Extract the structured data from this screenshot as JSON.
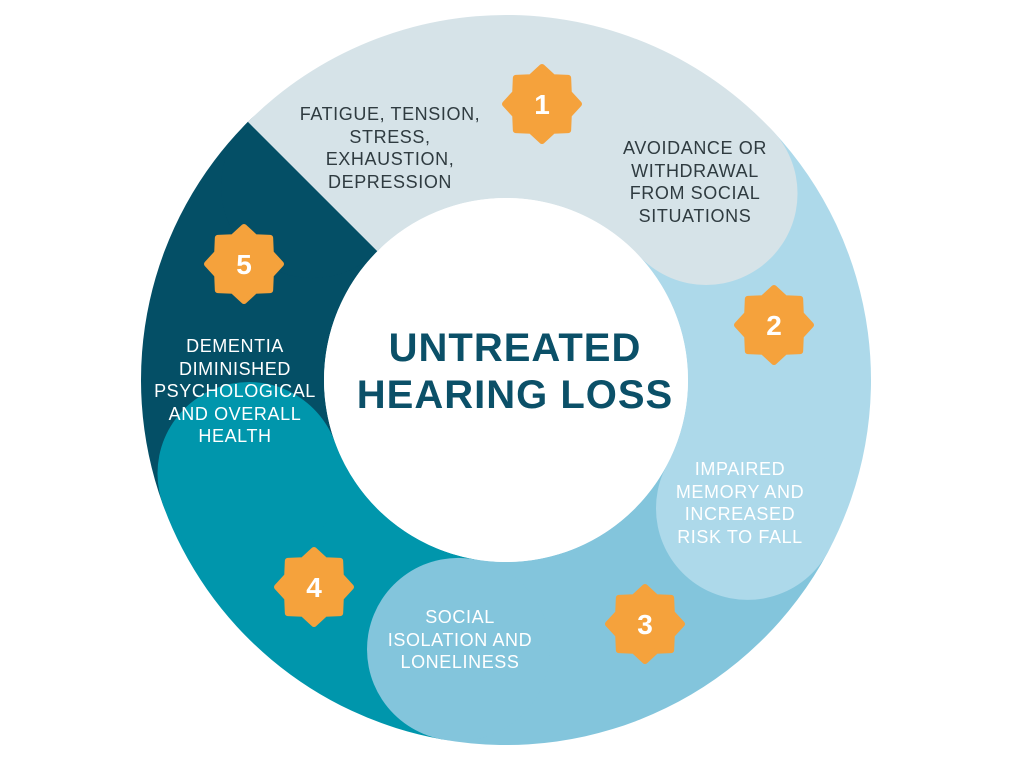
{
  "center_title": [
    "UNTREATED",
    "HEARING LOSS"
  ],
  "colors": {
    "segment_1": "#d6e3e8",
    "segment_2": "#add9ea",
    "segment_3": "#83c5dc",
    "segment_4": "#0096ac",
    "segment_5": "#044f66",
    "badge": "#f5a23c",
    "title": "#0b5068"
  },
  "segments": [
    {
      "number": "1",
      "lines": [
        "FATIGUE, TENSION,",
        "STRESS,",
        "EXHAUSTION,",
        "DEPRESSION"
      ]
    },
    {
      "number": "2",
      "lines": [
        "AVOIDANCE OR",
        "WITHDRAWAL",
        "FROM SOCIAL",
        "SITUATIONS"
      ]
    },
    {
      "number": "3",
      "lines": [
        "IMPAIRED",
        "MEMORY AND",
        "INCREASED",
        "RISK TO FALL"
      ]
    },
    {
      "number": "4",
      "lines": [
        "SOCIAL",
        "ISOLATION AND",
        "LONELINESS"
      ]
    },
    {
      "number": "5",
      "lines": [
        "DEMENTIA",
        "DIMINISHED",
        "PSYCHOLOGICAL",
        "AND OVERALL",
        "HEALTH"
      ]
    }
  ]
}
